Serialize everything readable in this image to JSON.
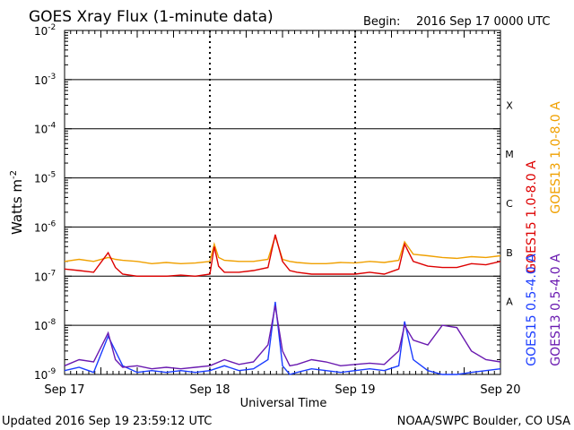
{
  "header": {
    "title": "GOES Xray Flux (1-minute data)",
    "begin_label": "Begin:",
    "begin_value": "2016 Sep 17 0000 UTC"
  },
  "footer": {
    "updated": "Updated 2016 Sep 19 23:59:12 UTC",
    "credit": "NOAA/SWPC Boulder, CO USA"
  },
  "colors": {
    "goes15_long": "#dd0000",
    "goes13_long": "#f0a000",
    "goes15_short": "#1a3cff",
    "goes13_short": "#6a1ab0"
  },
  "chart_data": {
    "type": "line",
    "yscale": "log",
    "ylim": [
      1e-09,
      0.01
    ],
    "xlim": [
      0,
      3
    ],
    "ylabel_base": "Watts m",
    "ylabel_exp": "-2",
    "xlabel": "Universal Time",
    "x_tick_labels": [
      "Sep 17",
      "Sep 18",
      "Sep 19",
      "Sep 20"
    ],
    "y_ticks": [
      {
        "exp": "-9"
      },
      {
        "exp": "-8"
      },
      {
        "exp": "-7"
      },
      {
        "exp": "-6"
      },
      {
        "exp": "-5"
      },
      {
        "exp": "-4"
      },
      {
        "exp": "-3"
      },
      {
        "exp": "-2"
      }
    ],
    "flare_classes": [
      "A",
      "B",
      "C",
      "M",
      "X"
    ],
    "grid": "horizontal lines at decades; dotted vertical lines at day boundaries",
    "legend": [
      "GOES15 1.0-8.0 A",
      "GOES13 1.0-8.0 A",
      "GOES15 0.5-4.0 A",
      "GOES13 0.5-4.0 A"
    ],
    "series": [
      {
        "name": "GOES13 1.0-8.0 A",
        "x": [
          0.0,
          0.1,
          0.2,
          0.3,
          0.35,
          0.4,
          0.5,
          0.6,
          0.7,
          0.8,
          0.9,
          1.0,
          1.03,
          1.06,
          1.1,
          1.2,
          1.3,
          1.4,
          1.45,
          1.5,
          1.55,
          1.6,
          1.7,
          1.8,
          1.9,
          2.0,
          2.1,
          2.2,
          2.3,
          2.34,
          2.4,
          2.5,
          2.6,
          2.7,
          2.8,
          2.9,
          3.0
        ],
        "y": [
          2e-07,
          2.2e-07,
          2e-07,
          2.4e-07,
          2.2e-07,
          2.1e-07,
          2e-07,
          1.8e-07,
          1.9e-07,
          1.8e-07,
          1.85e-07,
          2e-07,
          4.5e-07,
          2.4e-07,
          2.1e-07,
          2e-07,
          2e-07,
          2.2e-07,
          6.5e-07,
          2.2e-07,
          2e-07,
          1.9e-07,
          1.8e-07,
          1.8e-07,
          1.9e-07,
          1.85e-07,
          2e-07,
          1.9e-07,
          2.1e-07,
          5e-07,
          2.8e-07,
          2.6e-07,
          2.4e-07,
          2.3e-07,
          2.5e-07,
          2.4e-07,
          2.6e-07
        ]
      },
      {
        "name": "GOES15 1.0-8.0 A",
        "x": [
          0.0,
          0.1,
          0.2,
          0.3,
          0.35,
          0.4,
          0.5,
          0.6,
          0.7,
          0.8,
          0.9,
          1.0,
          1.03,
          1.06,
          1.1,
          1.2,
          1.3,
          1.4,
          1.45,
          1.5,
          1.55,
          1.6,
          1.7,
          1.8,
          1.9,
          2.0,
          2.1,
          2.2,
          2.3,
          2.34,
          2.4,
          2.5,
          2.6,
          2.7,
          2.8,
          2.9,
          3.0
        ],
        "y": [
          1.4e-07,
          1.3e-07,
          1.2e-07,
          3e-07,
          1.5e-07,
          1.1e-07,
          1e-07,
          1e-07,
          1e-07,
          1.05e-07,
          1e-07,
          1.1e-07,
          4e-07,
          1.6e-07,
          1.2e-07,
          1.2e-07,
          1.3e-07,
          1.5e-07,
          7e-07,
          2e-07,
          1.3e-07,
          1.2e-07,
          1.1e-07,
          1.1e-07,
          1.1e-07,
          1.1e-07,
          1.2e-07,
          1.1e-07,
          1.4e-07,
          4.5e-07,
          2e-07,
          1.6e-07,
          1.5e-07,
          1.5e-07,
          1.8e-07,
          1.7e-07,
          2e-07
        ]
      },
      {
        "name": "GOES15 0.5-4.0 A",
        "x": [
          0.0,
          0.1,
          0.2,
          0.3,
          0.4,
          0.5,
          0.6,
          0.7,
          0.8,
          0.9,
          1.0,
          1.1,
          1.2,
          1.3,
          1.4,
          1.45,
          1.5,
          1.55,
          1.6,
          1.7,
          1.8,
          1.9,
          2.0,
          2.1,
          2.2,
          2.3,
          2.34,
          2.4,
          2.5,
          2.6,
          2.7,
          2.8,
          2.9,
          3.0
        ],
        "y": [
          1.2e-09,
          1.4e-09,
          1.1e-09,
          6e-09,
          1.5e-09,
          1.1e-09,
          1.2e-09,
          1.1e-09,
          1.2e-09,
          1.1e-09,
          1.2e-09,
          1.5e-09,
          1.2e-09,
          1.3e-09,
          2e-09,
          3e-08,
          1.5e-09,
          1e-09,
          1.1e-09,
          1.3e-09,
          1.2e-09,
          1.1e-09,
          1.2e-09,
          1.3e-09,
          1.2e-09,
          1.5e-09,
          1.2e-08,
          2e-09,
          1.2e-09,
          1e-09,
          1e-09,
          1.1e-09,
          1.2e-09,
          1.3e-09
        ]
      },
      {
        "name": "GOES13 0.5-4.0 A",
        "x": [
          0.0,
          0.1,
          0.2,
          0.3,
          0.35,
          0.4,
          0.5,
          0.6,
          0.7,
          0.8,
          0.9,
          1.0,
          1.1,
          1.2,
          1.3,
          1.4,
          1.45,
          1.5,
          1.55,
          1.6,
          1.7,
          1.8,
          1.9,
          2.0,
          2.1,
          2.2,
          2.3,
          2.34,
          2.4,
          2.5,
          2.6,
          2.7,
          2.8,
          2.9,
          3.0
        ],
        "y": [
          1.5e-09,
          2e-09,
          1.8e-09,
          7e-09,
          2e-09,
          1.4e-09,
          1.5e-09,
          1.3e-09,
          1.4e-09,
          1.3e-09,
          1.4e-09,
          1.5e-09,
          2e-09,
          1.6e-09,
          1.8e-09,
          4e-09,
          2.5e-08,
          3e-09,
          1.5e-09,
          1.6e-09,
          2e-09,
          1.8e-09,
          1.5e-09,
          1.6e-09,
          1.7e-09,
          1.6e-09,
          3e-09,
          1e-08,
          5e-09,
          4e-09,
          1e-08,
          9e-09,
          3e-09,
          2e-09,
          1.8e-09
        ]
      }
    ]
  }
}
